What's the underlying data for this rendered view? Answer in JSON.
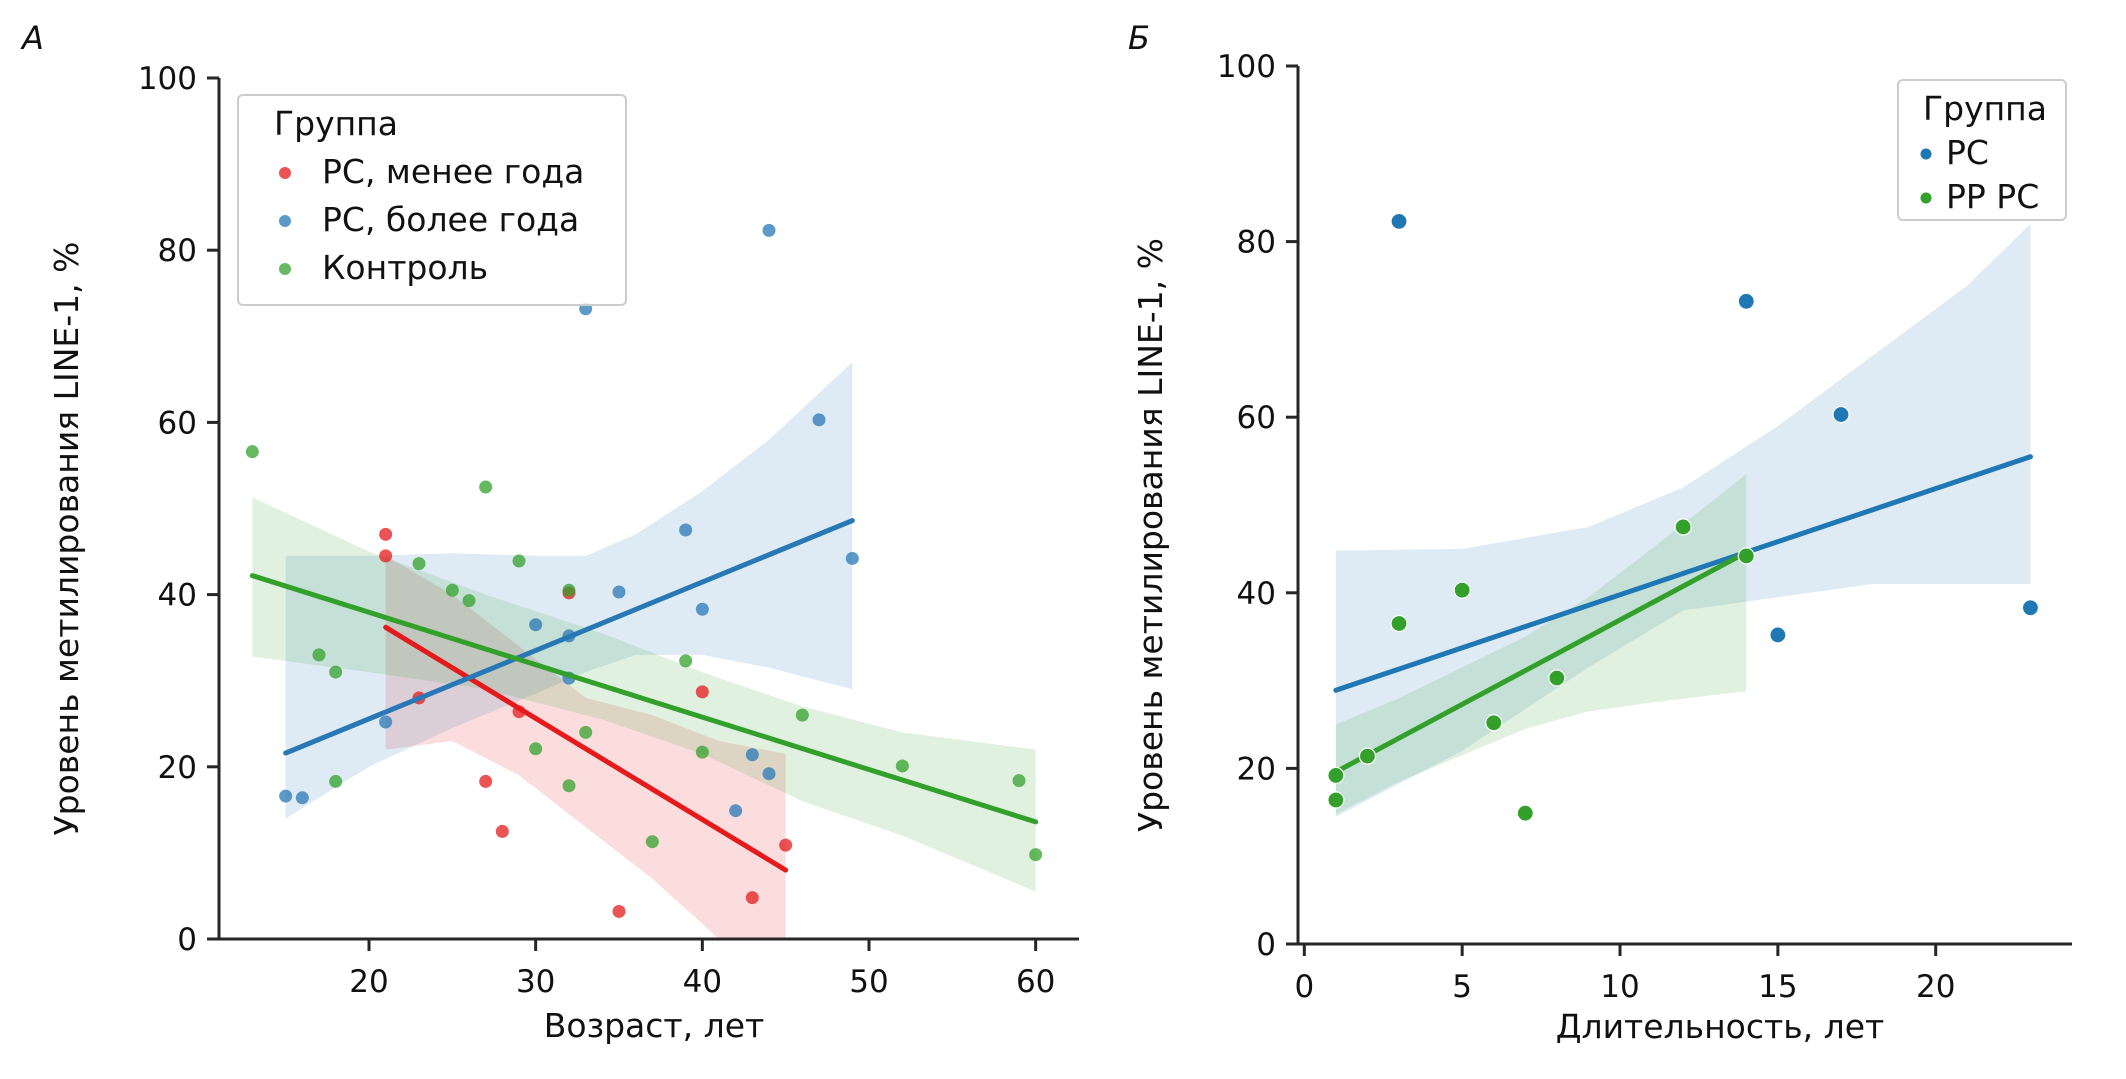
{
  "figure": {
    "panels": [
      "А",
      "Б"
    ]
  },
  "chart_data": [
    {
      "type": "scatter",
      "panel_label": "А",
      "title": "",
      "xlabel": "Возраст, лет",
      "ylabel": "Уровень метилирования LINE-1, %",
      "xlim": [
        11,
        62
      ],
      "ylim": [
        0,
        100
      ],
      "xticks": [
        20,
        30,
        40,
        50,
        60
      ],
      "yticks": [
        0,
        20,
        40,
        60,
        80,
        100
      ],
      "grid": false,
      "legend": {
        "title": "Группа",
        "placement": "top-left",
        "entries": [
          "РС, менее года",
          "РС, более года",
          "Контроль"
        ]
      },
      "series": [
        {
          "name": "РС, менее года",
          "color": "#e41a1c",
          "points": [
            [
              21,
              47
            ],
            [
              21,
              44.5
            ],
            [
              23,
              28
            ],
            [
              27,
              18.3
            ],
            [
              28,
              12.5
            ],
            [
              29,
              26.4
            ],
            [
              32,
              40.2
            ],
            [
              35,
              3.2
            ],
            [
              40,
              28.7
            ],
            [
              43,
              4.8
            ],
            [
              45,
              10.9
            ]
          ],
          "regression": {
            "x": [
              21,
              45
            ],
            "y": [
              36.2,
              8.0
            ]
          },
          "ci": {
            "x": [
              21,
              25,
              29,
              33,
              37,
              41,
              45
            ],
            "upper": [
              44.5,
              40,
              34,
              28,
              26,
              23,
              21.5
            ],
            "lower": [
              22,
              23,
              19,
              13,
              7,
              -2,
              -10
            ]
          }
        },
        {
          "name": "РС, более года",
          "color": "#2878b5",
          "points": [
            [
              15,
              16.6
            ],
            [
              16,
              16.4
            ],
            [
              21,
              25.2
            ],
            [
              30,
              36.5
            ],
            [
              32,
              35.2
            ],
            [
              32,
              30.3
            ],
            [
              33,
              73.2
            ],
            [
              35,
              40.3
            ],
            [
              39,
              47.5
            ],
            [
              40,
              38.3
            ],
            [
              42,
              14.9
            ],
            [
              43,
              21.4
            ],
            [
              44,
              19.2
            ],
            [
              44,
              82.3
            ],
            [
              47,
              60.3
            ],
            [
              49,
              44.2
            ]
          ],
          "regression": {
            "x": [
              15,
              49
            ],
            "y": [
              21.6,
              48.6
            ]
          },
          "ci": {
            "x": [
              15,
              20,
              25,
              30,
              33,
              36,
              40,
              44,
              49
            ],
            "upper": [
              44.5,
              44.5,
              44.8,
              44.5,
              44.5,
              47,
              52,
              58,
              67
            ],
            "lower": [
              14,
              20,
              24.5,
              28.5,
              31,
              33,
              33,
              31.5,
              29
            ]
          }
        },
        {
          "name": "Контроль",
          "color": "#33a02c",
          "points": [
            [
              13,
              56.6
            ],
            [
              17,
              33
            ],
            [
              18,
              31
            ],
            [
              18,
              18.3
            ],
            [
              23,
              43.6
            ],
            [
              25,
              40.5
            ],
            [
              26,
              39.3
            ],
            [
              27,
              52.5
            ],
            [
              29,
              43.9
            ],
            [
              30,
              22.1
            ],
            [
              32,
              40.5
            ],
            [
              32,
              17.8
            ],
            [
              33,
              24
            ],
            [
              37,
              11.3
            ],
            [
              39,
              32.3
            ],
            [
              40,
              21.7
            ],
            [
              46,
              26
            ],
            [
              52,
              20.1
            ],
            [
              59,
              18.4
            ],
            [
              60,
              9.8
            ]
          ],
          "regression": {
            "x": [
              13,
              60
            ],
            "y": [
              42.2,
              13.6
            ]
          },
          "ci": {
            "x": [
              13,
              20,
              27,
              34,
              40,
              46,
              52,
              60
            ],
            "upper": [
              51.3,
              45,
              40,
              35.5,
              31,
              27,
              24,
              22
            ],
            "lower": [
              32.8,
              31,
              29,
              25.5,
              21.5,
              16,
              12,
              5.5
            ]
          }
        }
      ]
    },
    {
      "type": "scatter",
      "panel_label": "Б",
      "title": "",
      "xlabel": "Длительность, лет",
      "ylabel": "Уровень метилирования LINE-1, %",
      "xlim": [
        -0.2,
        24
      ],
      "ylim": [
        0,
        100
      ],
      "xticks": [
        0,
        5,
        10,
        15,
        20
      ],
      "yticks": [
        0,
        20,
        40,
        60,
        80,
        100
      ],
      "grid": false,
      "legend": {
        "title": "Группа",
        "placement": "top-right",
        "entries": [
          "РС",
          "РР РС"
        ]
      },
      "series": [
        {
          "name": "РС",
          "color": "#1f77b4",
          "points": [
            [
              3,
              82.3
            ],
            [
              14,
              73.2
            ],
            [
              15,
              35.2
            ],
            [
              17,
              60.3
            ],
            [
              23,
              38.3
            ]
          ],
          "regression": {
            "x": [
              1,
              23
            ],
            "y": [
              28.9,
              55.5
            ]
          },
          "ci": {
            "x": [
              1,
              5,
              9,
              12,
              15,
              18,
              21,
              23
            ],
            "upper": [
              44.8,
              45,
              47.5,
              52,
              59,
              67,
              75,
              82
            ],
            "lower": [
              14.5,
              22,
              31.5,
              38,
              39.5,
              41,
              41,
              41
            ]
          }
        },
        {
          "name": "РР РС",
          "color": "#33a02c",
          "points": [
            [
              1,
              19.2
            ],
            [
              1,
              16.4
            ],
            [
              2,
              21.4
            ],
            [
              3,
              36.5
            ],
            [
              5,
              40.3
            ],
            [
              6,
              25.2
            ],
            [
              7,
              14.9
            ],
            [
              8,
              30.3
            ],
            [
              12,
              47.5
            ],
            [
              14,
              44.2
            ]
          ],
          "regression": {
            "x": [
              1,
              14
            ],
            "y": [
              19.6,
              44.6
            ]
          },
          "ci": {
            "x": [
              1,
              3,
              5,
              7,
              9,
              11,
              14
            ],
            "upper": [
              25,
              28,
              31.5,
              35,
              39.5,
              45,
              53.5
            ],
            "lower": [
              14.8,
              18.5,
              21.5,
              24.5,
              26.5,
              27.5,
              28.8
            ]
          }
        }
      ]
    }
  ]
}
